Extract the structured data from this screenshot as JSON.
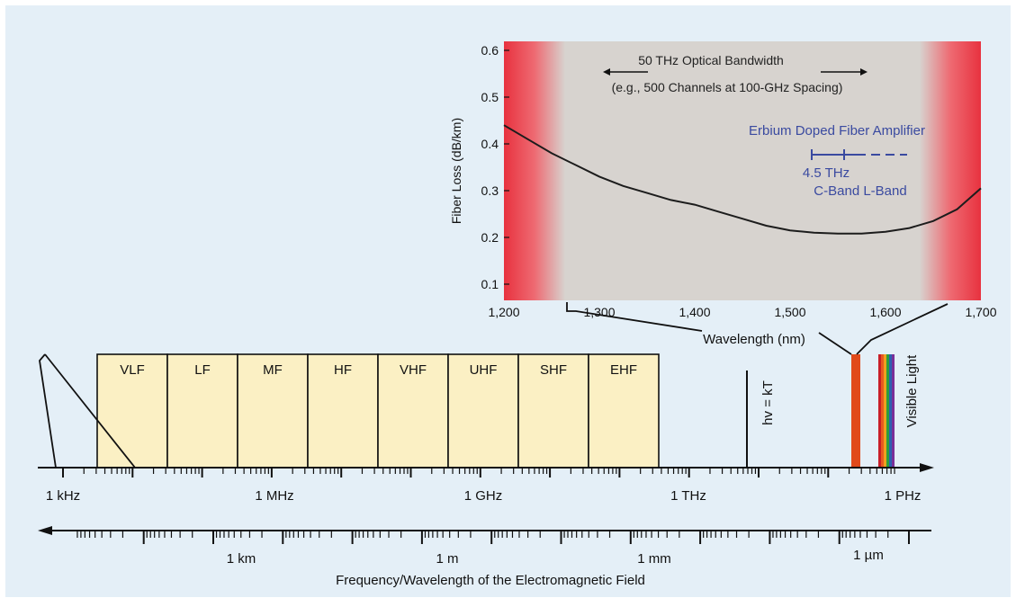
{
  "colors": {
    "panel_bg": "#e4eff7",
    "band_fill": "#fbf0c4",
    "chart_bg": "#d7d3cf",
    "edge_red": "#e8323f",
    "curve": "#1c1c1c",
    "edfa_blue": "#3a4aa0"
  },
  "spectrum": {
    "bands": [
      "VLF",
      "LF",
      "MF",
      "HF",
      "VHF",
      "UHF",
      "SHF",
      "EHF"
    ],
    "hv_label": "hv = kT",
    "visible_label": "Visible Light",
    "visible_colors": [
      "#c81e28",
      "#e85a20",
      "#f0a020",
      "#2e9e3a",
      "#2f5fb0",
      "#7a2f98"
    ],
    "freq_ticks": [
      "1 kHz",
      "1 MHz",
      "1 GHz",
      "1 THz",
      "1 PHz"
    ],
    "wavelength_ticks": [
      "1 km",
      "1 m",
      "1 mm",
      "1 µm"
    ],
    "caption": "Frequency/Wavelength of the Electromagnetic Field"
  },
  "chart_data": {
    "type": "line",
    "xlabel": "Wavelength (nm)",
    "ylabel": "Fiber Loss (dB/km)",
    "xlim": [
      1200,
      1700
    ],
    "ylim": [
      0.1,
      0.6
    ],
    "x_ticks": [
      "1,200",
      "1,300",
      "1,400",
      "1,500",
      "1,600",
      "1,700"
    ],
    "y_ticks": [
      "0.1",
      "0.2",
      "0.3",
      "0.4",
      "0.5",
      "0.6"
    ],
    "grid": false,
    "series": [
      {
        "x": [
          1200,
          1225,
          1250,
          1275,
          1300,
          1325,
          1350,
          1375,
          1400,
          1425,
          1450,
          1475,
          1500,
          1525,
          1550,
          1575,
          1600,
          1625,
          1650,
          1675,
          1700
        ],
        "y": [
          0.44,
          0.41,
          0.38,
          0.355,
          0.33,
          0.31,
          0.295,
          0.28,
          0.27,
          0.255,
          0.24,
          0.225,
          0.215,
          0.21,
          0.208,
          0.208,
          0.212,
          0.22,
          0.235,
          0.26,
          0.305
        ]
      }
    ],
    "annotations": {
      "bandwidth_line1": "50 THz Optical Bandwidth",
      "bandwidth_line2": "(e.g., 500 Channels at 100-GHz Spacing)",
      "edfa_title": "Erbium Doped Fiber Amplifier",
      "edfa_width": "4.5 THz",
      "edfa_bands": "C-Band L-Band"
    }
  }
}
